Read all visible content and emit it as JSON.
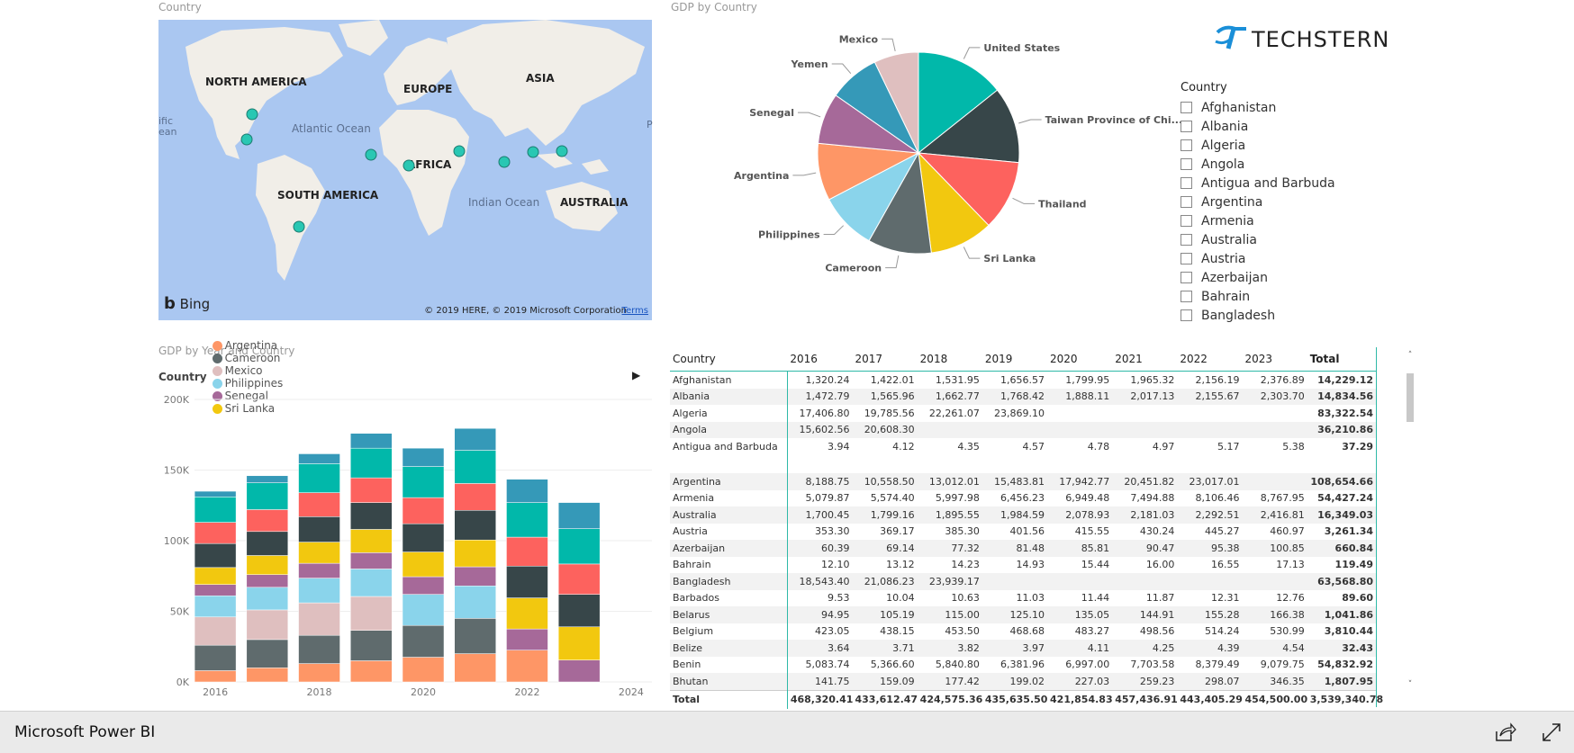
{
  "map": {
    "title": "Country",
    "continents": [
      {
        "key": "na",
        "label": "NORTH AMERICA"
      },
      {
        "key": "eu",
        "label": "EUROPE"
      },
      {
        "key": "as",
        "label": "ASIA"
      },
      {
        "key": "af",
        "label": "AFRICA"
      },
      {
        "key": "sa",
        "label": "SOUTH AMERICA"
      },
      {
        "key": "au",
        "label": "AUSTRALIA"
      }
    ],
    "oceans": [
      "Atlantic Ocean",
      "Indian Ocean"
    ],
    "edge_left_1": "ific",
    "edge_left_2": "ean",
    "edge_right": "P",
    "bing_logo": "Bing",
    "copyright": "© 2019 HERE, © 2019 Microsoft Corporation",
    "terms": "Terms"
  },
  "pie": {
    "title": "GDP by Country",
    "slices": [
      {
        "label": "United States",
        "value": 14,
        "color": "#01b8aa"
      },
      {
        "label": "Taiwan Province of Chi...",
        "value": 12,
        "color": "#374649"
      },
      {
        "label": "Thailand",
        "value": 11,
        "color": "#fd625e"
      },
      {
        "label": "Sri Lanka",
        "value": 10,
        "color": "#f2c80f"
      },
      {
        "label": "Cameroon",
        "value": 10,
        "color": "#5f6b6d"
      },
      {
        "label": "Philippines",
        "value": 9,
        "color": "#8ad4eb"
      },
      {
        "label": "Argentina",
        "value": 9,
        "color": "#fe9666"
      },
      {
        "label": "Senegal",
        "value": 8,
        "color": "#a66999"
      },
      {
        "label": "Yemen",
        "value": 8,
        "color": "#3599b8"
      },
      {
        "label": "Mexico",
        "value": 7,
        "color": "#dfbfbf"
      }
    ]
  },
  "logo": {
    "text": "TECHSTERN"
  },
  "slicer": {
    "header": "Country",
    "items": [
      "Afghanistan",
      "Albania",
      "Algeria",
      "Angola",
      "Antigua and Barbuda",
      "Argentina",
      "Armenia",
      "Australia",
      "Austria",
      "Azerbaijan",
      "Bahrain",
      "Bangladesh"
    ]
  },
  "bar_chart": {
    "title": "GDP by Year and Country",
    "legend_title": "Country",
    "legend": [
      {
        "name": "Argentina",
        "color": "#fe9666"
      },
      {
        "name": "Cameroon",
        "color": "#5f6b6d"
      },
      {
        "name": "Mexico",
        "color": "#dfbfbf"
      },
      {
        "name": "Philippines",
        "color": "#8ad4eb"
      },
      {
        "name": "Senegal",
        "color": "#a66999"
      },
      {
        "name": "Sri Lanka",
        "color": "#f2c80f"
      }
    ],
    "legend_arrow": "▶"
  },
  "chart_data": {
    "type": "bar",
    "stacked": true,
    "x": [
      2016,
      2017,
      2018,
      2019,
      2020,
      2021,
      2022,
      2023
    ],
    "xticks": [
      "2016",
      "2018",
      "2020",
      "2022",
      "2024"
    ],
    "xtick_values": [
      2016,
      2018,
      2020,
      2022,
      2024
    ],
    "yticks": [
      "0K",
      "50K",
      "100K",
      "150K",
      "200K"
    ],
    "ylim": [
      0,
      200000
    ],
    "xlim": [
      2015.6,
      2024.4
    ],
    "series": [
      {
        "color": "#fe9666",
        "values": [
          8000,
          10000,
          13000,
          15000,
          17500,
          20000,
          22500,
          0
        ]
      },
      {
        "color": "#5f6b6d",
        "values": [
          18000,
          20000,
          20000,
          21500,
          22500,
          25000,
          0,
          0
        ]
      },
      {
        "color": "#a66999",
        "values": [
          0,
          0,
          0,
          0,
          0,
          0,
          15000,
          15500
        ]
      },
      {
        "color": "#f2c80f",
        "values": [
          0,
          0,
          0,
          0,
          0,
          0,
          22000,
          23500
        ]
      },
      {
        "color": "#dfbfbf",
        "values": [
          20000,
          21000,
          23000,
          24000,
          0,
          0,
          0,
          0
        ]
      },
      {
        "color": "#8ad4eb",
        "values": [
          15000,
          16000,
          17500,
          19500,
          22000,
          23000,
          0,
          0
        ]
      },
      {
        "color": "#a66999",
        "values": [
          8000,
          9000,
          10500,
          11500,
          12500,
          13500,
          0,
          0
        ]
      },
      {
        "color": "#f2c80f",
        "values": [
          12000,
          13500,
          15000,
          16500,
          17500,
          19000,
          0,
          0
        ]
      },
      {
        "color": "#374649",
        "values": [
          17000,
          17000,
          18000,
          19000,
          20000,
          21000,
          22500,
          23000
        ]
      },
      {
        "color": "#fd625e",
        "values": [
          15000,
          15500,
          17000,
          17500,
          18500,
          19000,
          20500,
          21500
        ]
      },
      {
        "color": "#01b8aa",
        "values": [
          18000,
          19000,
          20500,
          21000,
          22000,
          23500,
          24500,
          25000
        ]
      },
      {
        "color": "#3599b8",
        "values": [
          4000,
          5000,
          7000,
          10500,
          13000,
          15500,
          16500,
          18500
        ]
      }
    ]
  },
  "table": {
    "columns": [
      "Country",
      "2016",
      "2017",
      "2018",
      "2019",
      "2020",
      "2021",
      "2022",
      "2023",
      "Total"
    ],
    "rows": [
      [
        "Afghanistan",
        "1,320.24",
        "1,422.01",
        "1,531.95",
        "1,656.57",
        "1,799.95",
        "1,965.32",
        "2,156.19",
        "2,376.89",
        "14,229.12"
      ],
      [
        "Albania",
        "1,472.79",
        "1,565.96",
        "1,662.77",
        "1,768.42",
        "1,888.11",
        "2,017.13",
        "2,155.67",
        "2,303.70",
        "14,834.56"
      ],
      [
        "Algeria",
        "17,406.80",
        "19,785.56",
        "22,261.07",
        "23,869.10",
        "",
        "",
        "",
        "",
        "83,322.54"
      ],
      [
        "Angola",
        "15,602.56",
        "20,608.30",
        "",
        "",
        "",
        "",
        "",
        "",
        "36,210.86"
      ],
      [
        "Antigua and Barbuda",
        "3.94",
        "4.12",
        "4.35",
        "4.57",
        "4.78",
        "4.97",
        "5.17",
        "5.38",
        "37.29"
      ],
      [
        "Argentina",
        "8,188.75",
        "10,558.50",
        "13,012.01",
        "15,483.81",
        "17,942.77",
        "20,451.82",
        "23,017.01",
        "",
        "108,654.66"
      ],
      [
        "Armenia",
        "5,079.87",
        "5,574.40",
        "5,997.98",
        "6,456.23",
        "6,949.48",
        "7,494.88",
        "8,106.46",
        "8,767.95",
        "54,427.24"
      ],
      [
        "Australia",
        "1,700.45",
        "1,799.16",
        "1,895.55",
        "1,984.59",
        "2,078.93",
        "2,181.03",
        "2,292.51",
        "2,416.81",
        "16,349.03"
      ],
      [
        "Austria",
        "353.30",
        "369.17",
        "385.30",
        "401.56",
        "415.55",
        "430.24",
        "445.27",
        "460.97",
        "3,261.34"
      ],
      [
        "Azerbaijan",
        "60.39",
        "69.14",
        "77.32",
        "81.48",
        "85.81",
        "90.47",
        "95.38",
        "100.85",
        "660.84"
      ],
      [
        "Bahrain",
        "12.10",
        "13.12",
        "14.23",
        "14.93",
        "15.44",
        "16.00",
        "16.55",
        "17.13",
        "119.49"
      ],
      [
        "Bangladesh",
        "18,543.40",
        "21,086.23",
        "23,939.17",
        "",
        "",
        "",
        "",
        "",
        "63,568.80"
      ],
      [
        "Barbados",
        "9.53",
        "10.04",
        "10.63",
        "11.03",
        "11.44",
        "11.87",
        "12.31",
        "12.76",
        "89.60"
      ],
      [
        "Belarus",
        "94.95",
        "105.19",
        "115.00",
        "125.10",
        "135.05",
        "144.91",
        "155.28",
        "166.38",
        "1,041.86"
      ],
      [
        "Belgium",
        "423.05",
        "438.15",
        "453.50",
        "468.68",
        "483.27",
        "498.56",
        "514.24",
        "530.99",
        "3,810.44"
      ],
      [
        "Belize",
        "3.64",
        "3.71",
        "3.82",
        "3.97",
        "4.11",
        "4.25",
        "4.39",
        "4.54",
        "32.43"
      ],
      [
        "Benin",
        "5,083.74",
        "5,366.60",
        "5,840.80",
        "6,381.96",
        "6,997.00",
        "7,703.58",
        "8,379.49",
        "9,079.75",
        "54,832.92"
      ],
      [
        "Bhutan",
        "141.75",
        "159.09",
        "177.42",
        "199.02",
        "227.03",
        "259.23",
        "298.07",
        "346.35",
        "1,807.95"
      ]
    ],
    "totals": [
      "Total",
      "468,320.41",
      "433,612.47",
      "424,575.36",
      "435,635.50",
      "421,854.83",
      "457,436.91",
      "443,405.29",
      "454,500.00",
      "3,539,340.78"
    ]
  },
  "scrollbar": {
    "up": "˄",
    "down": "˅"
  },
  "footer": {
    "app_name": "Microsoft Power BI"
  }
}
